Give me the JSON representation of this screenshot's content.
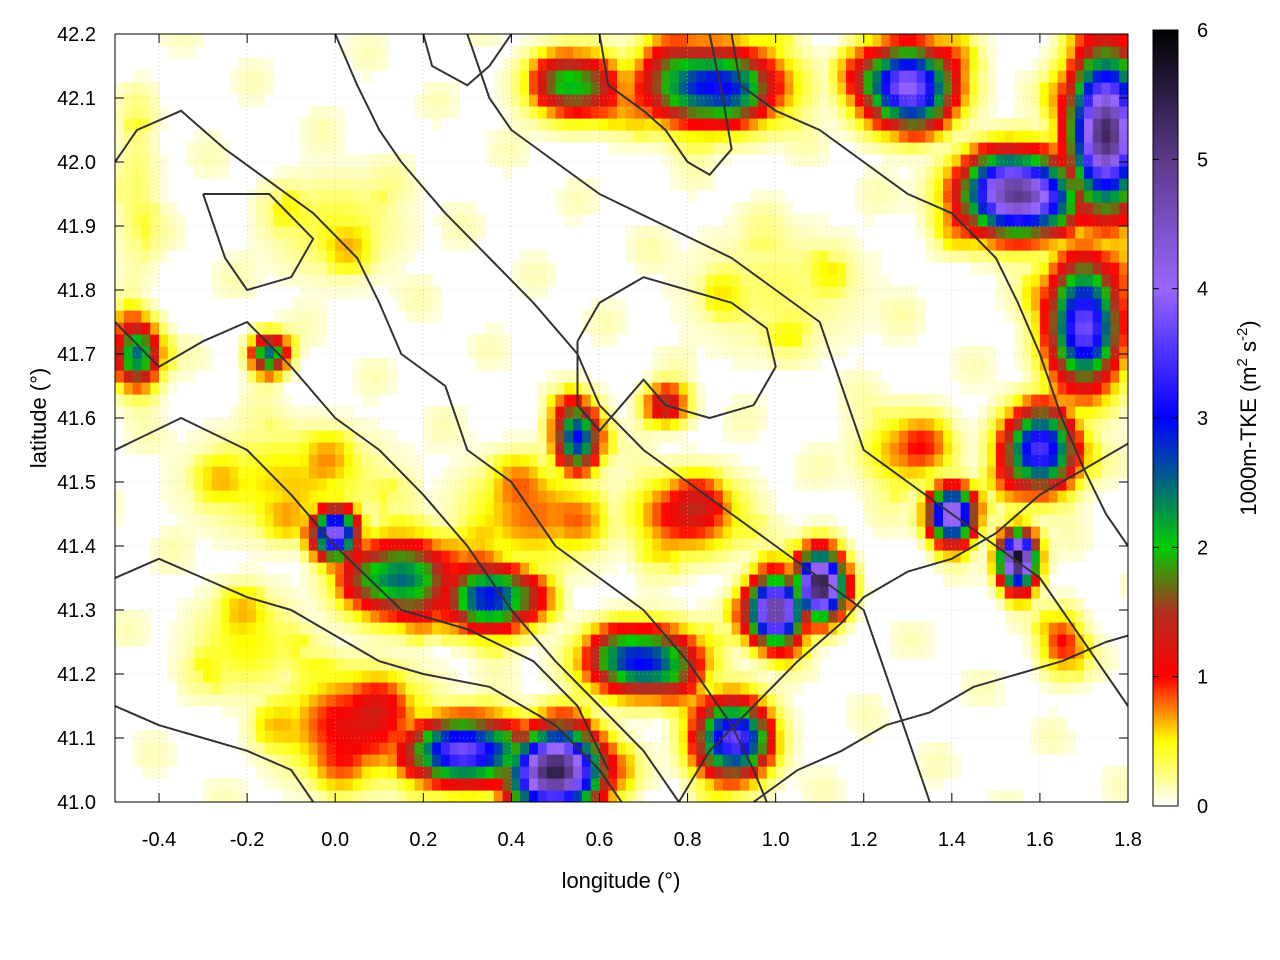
{
  "chart_data": {
    "type": "heatmap",
    "xlabel": "longitude (°)",
    "ylabel": "latitude (°)",
    "colorbar_label": "1000m-TKE (m² s⁻²)",
    "colorbar_label_parts": {
      "main": "1000m-TKE (m",
      "sup1": "2",
      "mid": " s",
      "sup2": "-2",
      "end": ")"
    },
    "xlim": [
      -0.5,
      1.8
    ],
    "ylim": [
      41.0,
      42.2
    ],
    "zlim": [
      0,
      6
    ],
    "x_ticks": [
      -0.4,
      -0.2,
      0.0,
      0.2,
      0.4,
      0.6,
      0.8,
      1.0,
      1.2,
      1.4,
      1.6,
      1.8
    ],
    "x_tick_labels": [
      "-0.4",
      "-0.2",
      "0.0",
      "0.2",
      "0.4",
      "0.6",
      "0.8",
      "1.0",
      "1.2",
      "1.4",
      "1.6",
      "1.8"
    ],
    "y_ticks": [
      41.0,
      41.1,
      41.2,
      41.3,
      41.4,
      41.5,
      41.6,
      41.7,
      41.8,
      41.9,
      42.0,
      42.1,
      42.2
    ],
    "y_tick_labels": [
      "41.0",
      "41.1",
      "41.2",
      "41.3",
      "41.4",
      "41.5",
      "41.6",
      "41.7",
      "41.8",
      "41.9",
      "42.0",
      "42.1",
      "42.2"
    ],
    "colorbar_ticks": [
      0,
      1,
      2,
      3,
      4,
      5,
      6
    ],
    "colorbar_tick_labels": [
      "0",
      "1",
      "2",
      "3",
      "4",
      "5",
      "6"
    ],
    "colormap": [
      {
        "value": 0.0,
        "color": "#ffffff"
      },
      {
        "value": 0.5,
        "color": "#ffff00"
      },
      {
        "value": 1.0,
        "color": "#ff0000"
      },
      {
        "value": 1.5,
        "color": "#b03020"
      },
      {
        "value": 2.0,
        "color": "#00cc00"
      },
      {
        "value": 3.0,
        "color": "#0000ff"
      },
      {
        "value": 4.0,
        "color": "#9966ff"
      },
      {
        "value": 5.0,
        "color": "#5a3a8a"
      },
      {
        "value": 6.0,
        "color": "#000000"
      }
    ],
    "grid": true,
    "contour_color": "#333333",
    "hotspots": [
      {
        "lon": 0.5,
        "lat": 41.05,
        "v": 5.5,
        "sx": 0.1,
        "sy": 0.06
      },
      {
        "lon": 0.3,
        "lat": 41.08,
        "v": 3.5,
        "sx": 0.14,
        "sy": 0.05
      },
      {
        "lon": 0.05,
        "lat": 41.12,
        "v": 1.2,
        "sx": 0.16,
        "sy": 0.08
      },
      {
        "lon": 0.15,
        "lat": 41.35,
        "v": 2.5,
        "sx": 0.12,
        "sy": 0.06
      },
      {
        "lon": 0.0,
        "lat": 41.42,
        "v": 4.0,
        "sx": 0.05,
        "sy": 0.04
      },
      {
        "lon": 0.35,
        "lat": 41.32,
        "v": 3.0,
        "sx": 0.1,
        "sy": 0.05
      },
      {
        "lon": 0.7,
        "lat": 41.22,
        "v": 3.0,
        "sx": 0.12,
        "sy": 0.05
      },
      {
        "lon": 0.9,
        "lat": 41.1,
        "v": 3.5,
        "sx": 0.08,
        "sy": 0.06
      },
      {
        "lon": 1.0,
        "lat": 41.3,
        "v": 5.0,
        "sx": 0.06,
        "sy": 0.05
      },
      {
        "lon": 1.1,
        "lat": 41.34,
        "v": 5.5,
        "sx": 0.05,
        "sy": 0.05
      },
      {
        "lon": 1.55,
        "lat": 41.38,
        "v": 5.8,
        "sx": 0.04,
        "sy": 0.04
      },
      {
        "lon": 1.4,
        "lat": 41.45,
        "v": 4.5,
        "sx": 0.05,
        "sy": 0.04
      },
      {
        "lon": 1.6,
        "lat": 41.55,
        "v": 3.5,
        "sx": 0.08,
        "sy": 0.06
      },
      {
        "lon": 1.7,
        "lat": 41.75,
        "v": 3.5,
        "sx": 0.08,
        "sy": 0.1
      },
      {
        "lon": 1.55,
        "lat": 41.95,
        "v": 5.0,
        "sx": 0.12,
        "sy": 0.06
      },
      {
        "lon": 1.75,
        "lat": 42.05,
        "v": 5.0,
        "sx": 0.08,
        "sy": 0.12
      },
      {
        "lon": 1.3,
        "lat": 42.12,
        "v": 4.0,
        "sx": 0.1,
        "sy": 0.06
      },
      {
        "lon": 0.85,
        "lat": 42.12,
        "v": 3.0,
        "sx": 0.15,
        "sy": 0.06
      },
      {
        "lon": 0.55,
        "lat": 42.12,
        "v": 2.0,
        "sx": 0.1,
        "sy": 0.05
      },
      {
        "lon": 0.55,
        "lat": 41.57,
        "v": 3.0,
        "sx": 0.05,
        "sy": 0.05
      },
      {
        "lon": 0.75,
        "lat": 41.62,
        "v": 1.5,
        "sx": 0.05,
        "sy": 0.03
      },
      {
        "lon": -0.1,
        "lat": 41.5,
        "v": 0.6,
        "sx": 0.2,
        "sy": 0.08
      },
      {
        "lon": -0.45,
        "lat": 41.7,
        "v": 2.5,
        "sx": 0.05,
        "sy": 0.05
      },
      {
        "lon": -0.15,
        "lat": 41.7,
        "v": 2.5,
        "sx": 0.04,
        "sy": 0.03
      },
      {
        "lon": 0.45,
        "lat": 41.45,
        "v": 0.8,
        "sx": 0.15,
        "sy": 0.08
      },
      {
        "lon": 0.8,
        "lat": 41.45,
        "v": 1.2,
        "sx": 0.12,
        "sy": 0.06
      },
      {
        "lon": 1.0,
        "lat": 41.8,
        "v": 0.3,
        "sx": 0.2,
        "sy": 0.1
      },
      {
        "lon": -0.2,
        "lat": 41.25,
        "v": 0.5,
        "sx": 0.12,
        "sy": 0.08
      },
      {
        "lon": 1.3,
        "lat": 41.55,
        "v": 0.8,
        "sx": 0.1,
        "sy": 0.06
      },
      {
        "lon": 0.0,
        "lat": 41.9,
        "v": 0.4,
        "sx": 0.15,
        "sy": 0.08
      },
      {
        "lon": -0.45,
        "lat": 41.95,
        "v": 0.3,
        "sx": 0.05,
        "sy": 0.15
      },
      {
        "lon": 1.65,
        "lat": 41.25,
        "v": 1.0,
        "sx": 0.05,
        "sy": 0.05
      }
    ],
    "contours": [
      [
        [
          -0.5,
          41.35
        ],
        [
          -0.4,
          41.38
        ],
        [
          -0.3,
          41.35
        ],
        [
          -0.2,
          41.32
        ],
        [
          -0.1,
          41.3
        ],
        [
          0.0,
          41.26
        ],
        [
          0.1,
          41.22
        ],
        [
          0.2,
          41.2
        ],
        [
          0.35,
          41.18
        ],
        [
          0.5,
          41.12
        ],
        [
          0.6,
          41.05
        ],
        [
          0.65,
          41.0
        ]
      ],
      [
        [
          -0.5,
          41.55
        ],
        [
          -0.35,
          41.6
        ],
        [
          -0.2,
          41.55
        ],
        [
          -0.1,
          41.48
        ],
        [
          0.0,
          41.4
        ],
        [
          0.15,
          41.3
        ],
        [
          0.3,
          41.27
        ],
        [
          0.45,
          41.22
        ],
        [
          0.55,
          41.15
        ],
        [
          0.62,
          41.05
        ]
      ],
      [
        [
          -0.5,
          41.75
        ],
        [
          -0.4,
          41.68
        ],
        [
          -0.3,
          41.72
        ],
        [
          -0.2,
          41.75
        ],
        [
          -0.1,
          41.68
        ],
        [
          0.0,
          41.6
        ],
        [
          0.1,
          41.55
        ],
        [
          0.2,
          41.48
        ],
        [
          0.3,
          41.4
        ],
        [
          0.4,
          41.3
        ],
        [
          0.5,
          41.22
        ],
        [
          0.6,
          41.15
        ],
        [
          0.7,
          41.08
        ],
        [
          0.78,
          41.0
        ]
      ],
      [
        [
          -0.5,
          42.0
        ],
        [
          -0.45,
          42.05
        ],
        [
          -0.35,
          42.08
        ],
        [
          -0.25,
          42.02
        ],
        [
          -0.15,
          41.97
        ],
        [
          -0.05,
          41.92
        ],
        [
          0.05,
          41.85
        ],
        [
          0.1,
          41.78
        ],
        [
          0.15,
          41.7
        ],
        [
          0.25,
          41.65
        ],
        [
          0.3,
          41.55
        ],
        [
          0.4,
          41.5
        ],
        [
          0.5,
          41.4
        ],
        [
          0.6,
          41.35
        ],
        [
          0.7,
          41.3
        ],
        [
          0.8,
          41.22
        ],
        [
          0.9,
          41.12
        ],
        [
          0.95,
          41.05
        ],
        [
          0.98,
          41.0
        ]
      ],
      [
        [
          0.0,
          42.2
        ],
        [
          0.05,
          42.12
        ],
        [
          0.1,
          42.05
        ],
        [
          0.15,
          42.0
        ],
        [
          0.25,
          41.92
        ],
        [
          0.35,
          41.85
        ],
        [
          0.45,
          41.78
        ],
        [
          0.55,
          41.7
        ],
        [
          0.6,
          41.62
        ],
        [
          0.7,
          41.55
        ],
        [
          0.8,
          41.5
        ],
        [
          0.9,
          41.45
        ],
        [
          1.0,
          41.4
        ],
        [
          1.1,
          41.35
        ],
        [
          1.2,
          41.3
        ],
        [
          1.25,
          41.2
        ],
        [
          1.3,
          41.1
        ],
        [
          1.35,
          41.0
        ]
      ],
      [
        [
          0.3,
          42.2
        ],
        [
          0.35,
          42.1
        ],
        [
          0.4,
          42.05
        ],
        [
          0.5,
          42.0
        ],
        [
          0.6,
          41.95
        ],
        [
          0.75,
          41.9
        ],
        [
          0.9,
          41.85
        ],
        [
          1.0,
          41.8
        ],
        [
          1.1,
          41.75
        ],
        [
          1.15,
          41.65
        ],
        [
          1.2,
          41.55
        ],
        [
          1.3,
          41.5
        ],
        [
          1.4,
          41.45
        ],
        [
          1.5,
          41.4
        ],
        [
          1.6,
          41.35
        ],
        [
          1.7,
          41.25
        ],
        [
          1.8,
          41.15
        ]
      ],
      [
        [
          0.55,
          41.72
        ],
        [
          0.6,
          41.78
        ],
        [
          0.7,
          41.82
        ],
        [
          0.8,
          41.8
        ],
        [
          0.9,
          41.78
        ],
        [
          0.98,
          41.74
        ],
        [
          1.0,
          41.68
        ],
        [
          0.95,
          41.62
        ],
        [
          0.85,
          41.6
        ],
        [
          0.75,
          41.62
        ],
        [
          0.7,
          41.66
        ],
        [
          0.65,
          41.62
        ],
        [
          0.6,
          41.58
        ],
        [
          0.55,
          41.62
        ],
        [
          0.55,
          41.72
        ]
      ],
      [
        [
          0.9,
          42.2
        ],
        [
          0.92,
          42.12
        ],
        [
          1.0,
          42.08
        ],
        [
          1.1,
          42.05
        ],
        [
          1.2,
          42.0
        ],
        [
          1.3,
          41.95
        ],
        [
          1.4,
          41.92
        ],
        [
          1.5,
          41.85
        ],
        [
          1.55,
          41.78
        ],
        [
          1.6,
          41.7
        ],
        [
          1.65,
          41.6
        ],
        [
          1.7,
          41.52
        ],
        [
          1.75,
          41.45
        ],
        [
          1.8,
          41.4
        ]
      ],
      [
        [
          0.95,
          41.0
        ],
        [
          1.05,
          41.05
        ],
        [
          1.15,
          41.08
        ],
        [
          1.25,
          41.12
        ],
        [
          1.35,
          41.14
        ],
        [
          1.45,
          41.18
        ],
        [
          1.55,
          41.2
        ],
        [
          1.65,
          41.22
        ],
        [
          1.75,
          41.25
        ],
        [
          1.8,
          41.26
        ]
      ],
      [
        [
          0.78,
          41.0
        ],
        [
          0.85,
          41.08
        ],
        [
          0.95,
          41.15
        ],
        [
          1.05,
          41.22
        ],
        [
          1.15,
          41.28
        ],
        [
          1.2,
          41.32
        ],
        [
          1.3,
          41.36
        ],
        [
          1.4,
          41.38
        ],
        [
          1.5,
          41.42
        ],
        [
          1.6,
          41.48
        ],
        [
          1.7,
          41.52
        ],
        [
          1.8,
          41.56
        ]
      ],
      [
        [
          -0.5,
          41.15
        ],
        [
          -0.4,
          41.12
        ],
        [
          -0.3,
          41.1
        ],
        [
          -0.2,
          41.08
        ],
        [
          -0.1,
          41.05
        ],
        [
          -0.05,
          41.0
        ]
      ],
      [
        [
          0.2,
          42.2
        ],
        [
          0.22,
          42.15
        ],
        [
          0.3,
          42.12
        ],
        [
          0.35,
          42.15
        ],
        [
          0.4,
          42.2
        ]
      ],
      [
        [
          0.6,
          42.2
        ],
        [
          0.62,
          42.12
        ],
        [
          0.7,
          42.08
        ],
        [
          0.75,
          42.05
        ],
        [
          0.8,
          42.0
        ],
        [
          0.85,
          41.98
        ],
        [
          0.9,
          42.02
        ],
        [
          0.88,
          42.1
        ],
        [
          0.85,
          42.2
        ]
      ],
      [
        [
          -0.3,
          41.95
        ],
        [
          -0.25,
          41.85
        ],
        [
          -0.2,
          41.8
        ],
        [
          -0.1,
          41.82
        ],
        [
          -0.05,
          41.88
        ],
        [
          -0.15,
          41.95
        ],
        [
          -0.3,
          41.95
        ]
      ]
    ]
  }
}
